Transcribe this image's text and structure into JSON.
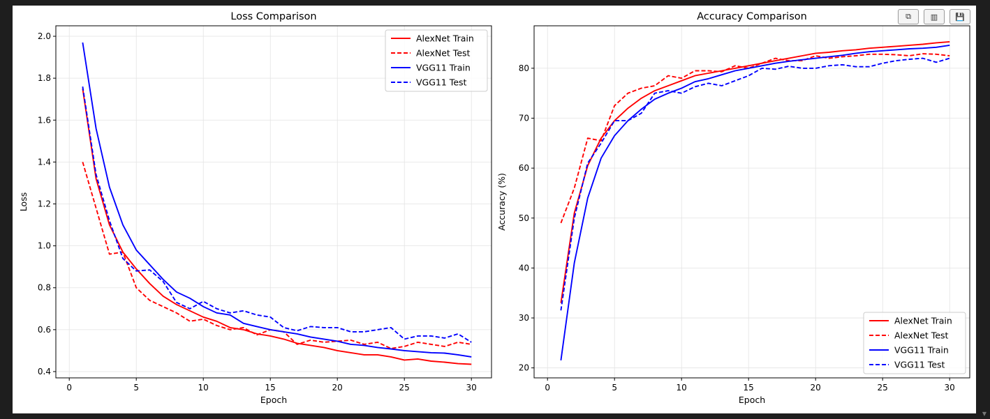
{
  "toolbar": {
    "buttons": [
      {
        "name": "copy-icon",
        "glyph": "⧉"
      },
      {
        "name": "chart-icon",
        "glyph": "▥"
      },
      {
        "name": "save-icon",
        "glyph": "💾"
      }
    ]
  },
  "colors": {
    "alexnet": "#ff0000",
    "vgg11": "#0000ff"
  },
  "chart_data": [
    {
      "type": "line",
      "title": "Loss Comparison",
      "xlabel": "Epoch",
      "ylabel": "Loss",
      "xlim": [
        -1.0,
        31.5
      ],
      "ylim": [
        0.37,
        2.05
      ],
      "xticks": [
        0,
        5,
        10,
        15,
        20,
        25,
        30
      ],
      "yticks": [
        0.4,
        0.6,
        0.8,
        1.0,
        1.2,
        1.4,
        1.6,
        1.8,
        2.0
      ],
      "ytick_labels": [
        "0.4",
        "0.6",
        "0.8",
        "1.0",
        "1.2",
        "1.4",
        "1.6",
        "1.8",
        "2.0"
      ],
      "grid": true,
      "legend_position": "top-right",
      "x": [
        1,
        2,
        3,
        4,
        5,
        6,
        7,
        8,
        9,
        10,
        11,
        12,
        13,
        14,
        15,
        16,
        17,
        18,
        19,
        20,
        21,
        22,
        23,
        24,
        25,
        26,
        27,
        28,
        29,
        30
      ],
      "series": [
        {
          "name": "AlexNet Train",
          "color": "#ff0000",
          "dash": false,
          "values": [
            1.75,
            1.32,
            1.1,
            0.97,
            0.89,
            0.82,
            0.76,
            0.72,
            0.69,
            0.66,
            0.64,
            0.61,
            0.6,
            0.58,
            0.57,
            0.555,
            0.535,
            0.525,
            0.515,
            0.5,
            0.49,
            0.48,
            0.48,
            0.47,
            0.455,
            0.46,
            0.45,
            0.445,
            0.438,
            0.435
          ]
        },
        {
          "name": "AlexNet Test",
          "color": "#ff0000",
          "dash": true,
          "values": [
            1.4,
            1.18,
            0.96,
            0.97,
            0.8,
            0.74,
            0.71,
            0.68,
            0.64,
            0.65,
            0.62,
            0.6,
            0.61,
            0.575,
            0.6,
            0.59,
            0.53,
            0.55,
            0.54,
            0.545,
            0.55,
            0.53,
            0.54,
            0.51,
            0.52,
            0.54,
            0.53,
            0.52,
            0.54,
            0.53
          ]
        },
        {
          "name": "VGG11 Train",
          "color": "#0000ff",
          "dash": false,
          "values": [
            1.97,
            1.56,
            1.28,
            1.1,
            0.98,
            0.91,
            0.84,
            0.78,
            0.75,
            0.71,
            0.68,
            0.67,
            0.63,
            0.615,
            0.6,
            0.59,
            0.58,
            0.565,
            0.555,
            0.545,
            0.53,
            0.525,
            0.515,
            0.508,
            0.5,
            0.495,
            0.49,
            0.488,
            0.48,
            0.47
          ]
        },
        {
          "name": "VGG11 Test",
          "color": "#0000ff",
          "dash": true,
          "values": [
            1.76,
            1.34,
            1.12,
            0.94,
            0.88,
            0.885,
            0.83,
            0.73,
            0.7,
            0.735,
            0.7,
            0.68,
            0.69,
            0.67,
            0.66,
            0.61,
            0.595,
            0.615,
            0.61,
            0.61,
            0.59,
            0.59,
            0.6,
            0.61,
            0.555,
            0.57,
            0.57,
            0.56,
            0.58,
            0.54
          ]
        }
      ]
    },
    {
      "type": "line",
      "title": "Accuracy Comparison",
      "xlabel": "Epoch",
      "ylabel": "Accuracy (%)",
      "xlim": [
        -1.0,
        31.5
      ],
      "ylim": [
        18,
        88.5
      ],
      "xticks": [
        0,
        5,
        10,
        15,
        20,
        25,
        30
      ],
      "yticks": [
        20,
        30,
        40,
        50,
        60,
        70,
        80
      ],
      "ytick_labels": [
        "20",
        "30",
        "40",
        "50",
        "60",
        "70",
        "80"
      ],
      "grid": true,
      "legend_position": "bottom-right",
      "x": [
        1,
        2,
        3,
        4,
        5,
        6,
        7,
        8,
        9,
        10,
        11,
        12,
        13,
        14,
        15,
        16,
        17,
        18,
        19,
        20,
        21,
        22,
        23,
        24,
        25,
        26,
        27,
        28,
        29,
        30
      ],
      "series": [
        {
          "name": "AlexNet Train",
          "color": "#ff0000",
          "dash": false,
          "values": [
            33,
            51,
            60.5,
            66,
            69.5,
            72,
            74,
            75.5,
            76.5,
            77.5,
            78.5,
            79,
            79.5,
            80,
            80.5,
            81,
            81.5,
            82,
            82.5,
            83,
            83.2,
            83.5,
            83.7,
            84,
            84.2,
            84.4,
            84.6,
            84.8,
            85.1,
            85.3
          ]
        },
        {
          "name": "AlexNet Test",
          "color": "#ff0000",
          "dash": true,
          "values": [
            49,
            56,
            66,
            65.5,
            72.5,
            75,
            76,
            76.5,
            78.5,
            78,
            79.5,
            79.5,
            79.3,
            80.5,
            80,
            81,
            82,
            81.5,
            81.5,
            82.5,
            82,
            82.3,
            82.5,
            82.8,
            82.8,
            82.7,
            82.5,
            82.9,
            82.8,
            82.5
          ]
        },
        {
          "name": "VGG11 Train",
          "color": "#0000ff",
          "dash": false,
          "values": [
            21.5,
            41,
            54,
            62,
            66.5,
            69.5,
            71.8,
            73.8,
            75,
            76,
            77.3,
            77.9,
            78.7,
            79.5,
            80,
            80.5,
            81,
            81.4,
            81.7,
            82,
            82.3,
            82.6,
            83,
            83.3,
            83.5,
            83.7,
            83.9,
            84,
            84.2,
            84.6
          ]
        },
        {
          "name": "VGG11 Test",
          "color": "#0000ff",
          "dash": true,
          "values": [
            31.5,
            50,
            61,
            65,
            69.5,
            69.5,
            71,
            75,
            75.5,
            75,
            76.3,
            77,
            76.5,
            77.5,
            78.5,
            80,
            79.8,
            80.4,
            80,
            80,
            80.5,
            80.7,
            80.3,
            80.3,
            81,
            81.5,
            81.8,
            82,
            81.2,
            82
          ]
        }
      ]
    }
  ]
}
